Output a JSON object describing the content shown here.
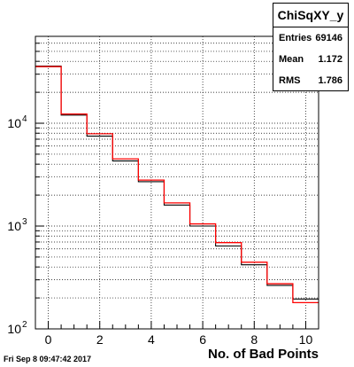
{
  "chart_data": {
    "type": "bar",
    "subtype": "histogram-step",
    "xlabel": "No. of Bad Points",
    "ylabel": "",
    "ylog": true,
    "xlim": [
      -0.5,
      10.5
    ],
    "ylim": [
      100,
      70000
    ],
    "grid": true,
    "x_ticks": [
      0,
      2,
      4,
      6,
      8,
      10
    ],
    "y_tick_labels": [
      {
        "value": 100,
        "label": "10",
        "exp": "2"
      },
      {
        "value": 1000,
        "label": "10",
        "exp": "3"
      },
      {
        "value": 10000,
        "label": "10",
        "exp": "4"
      }
    ],
    "bin_edges": [
      -0.5,
      0.5,
      1.5,
      2.5,
      3.5,
      4.5,
      5.5,
      6.5,
      7.5,
      8.5,
      9.5,
      10.5
    ],
    "series": [
      {
        "color": "#000000",
        "values": [
          36000,
          12000,
          7500,
          4300,
          2700,
          1600,
          1000,
          640,
          420,
          265,
          195
        ]
      },
      {
        "color": "#ff0000",
        "values": [
          35500,
          12300,
          7900,
          4500,
          2800,
          1680,
          1050,
          690,
          445,
          275,
          180
        ]
      }
    ]
  },
  "stats": {
    "title": "ChiSqXY_y",
    "entries_label": "Entries",
    "entries_value": "69146",
    "mean_label": "Mean",
    "mean_value": "1.172",
    "rms_label": "RMS",
    "rms_value": "1.786"
  },
  "timestamp": "Fri Sep  8 09:47:42 2017"
}
